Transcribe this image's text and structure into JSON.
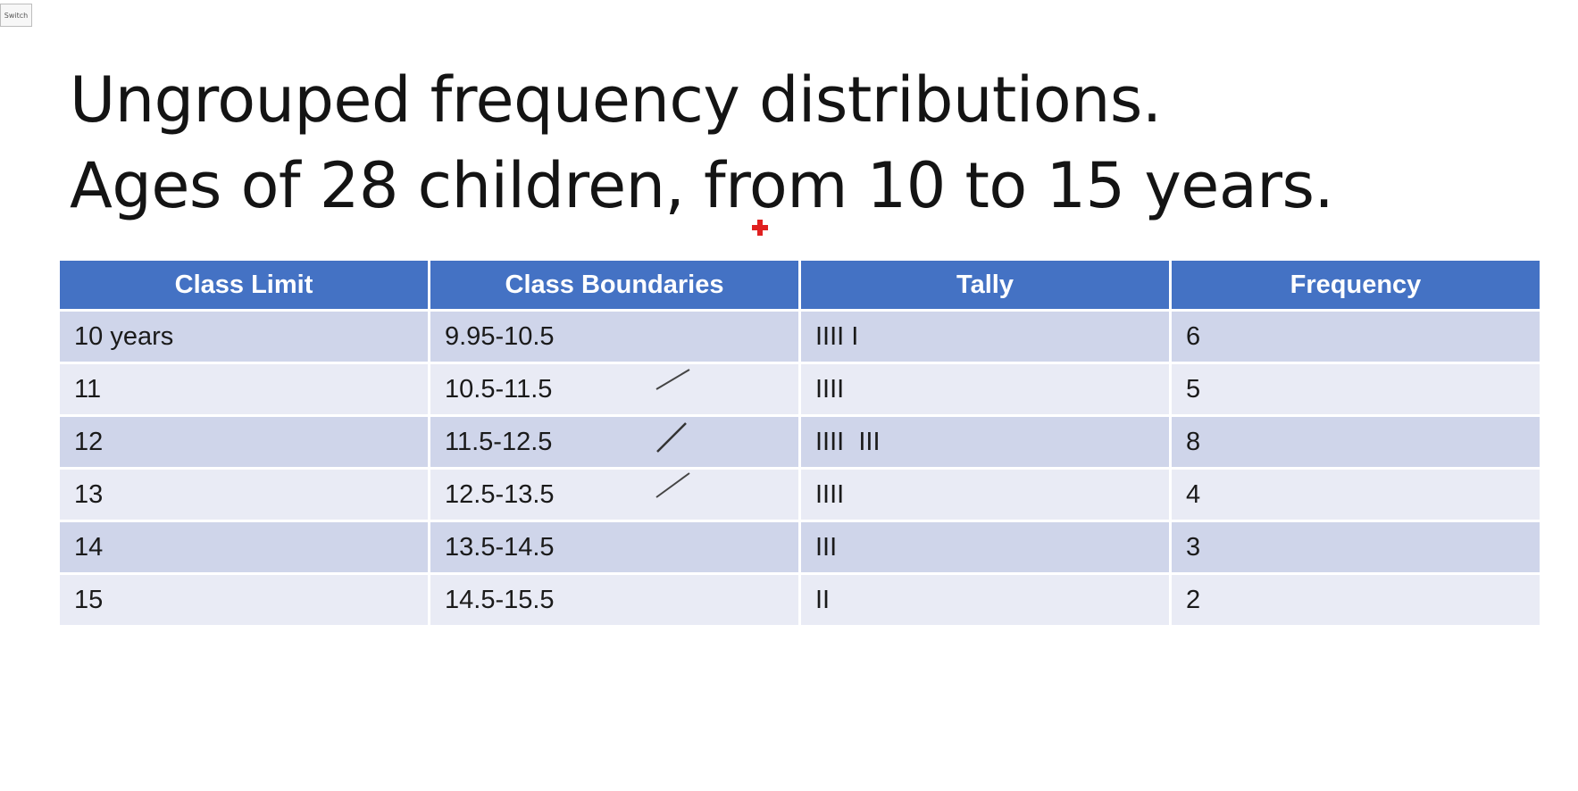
{
  "switch_label": "Switch",
  "title": {
    "line1": "Ungrouped frequency distributions.",
    "line2": "Ages of 28 children, from 10 to 15 years."
  },
  "table": {
    "headers": [
      "Class Limit",
      "Class Boundaries",
      "Tally",
      "Frequency"
    ],
    "rows": [
      [
        "10 years",
        "9.95-10.5",
        "IIII I",
        "6"
      ],
      [
        "11",
        "10.5-11.5",
        "IIII",
        "5"
      ],
      [
        "12",
        "11.5-12.5",
        "IIII  III",
        "8"
      ],
      [
        "13",
        "12.5-13.5",
        "IIII",
        "4"
      ],
      [
        "14",
        "13.5-14.5",
        "III",
        "3"
      ],
      [
        "15",
        "14.5-15.5",
        "II",
        "2"
      ]
    ]
  },
  "colors": {
    "header_bg": "#4472c4",
    "row_dark": "#cfd5ea",
    "row_light": "#e9ebf5",
    "pointer": "#e02020"
  }
}
